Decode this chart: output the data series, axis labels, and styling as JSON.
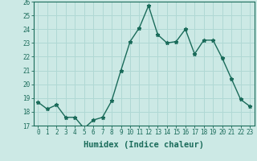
{
  "x": [
    0,
    1,
    2,
    3,
    4,
    5,
    6,
    7,
    8,
    9,
    10,
    11,
    12,
    13,
    14,
    15,
    16,
    17,
    18,
    19,
    20,
    21,
    22,
    23
  ],
  "y": [
    18.7,
    18.2,
    18.5,
    17.6,
    17.6,
    16.8,
    17.4,
    17.6,
    18.8,
    21.0,
    23.1,
    24.1,
    25.7,
    23.6,
    23.0,
    23.1,
    24.0,
    22.2,
    23.2,
    23.2,
    21.9,
    20.4,
    18.9,
    18.4
  ],
  "line_color": "#1a6b5a",
  "marker": "*",
  "marker_size": 3.5,
  "bg_color": "#cce9e5",
  "grid_color": "#b0d8d4",
  "xlabel": "Humidex (Indice chaleur)",
  "ylim": [
    17,
    26
  ],
  "xlim": [
    -0.5,
    23.5
  ],
  "yticks": [
    17,
    18,
    19,
    20,
    21,
    22,
    23,
    24,
    25,
    26
  ],
  "xticks": [
    0,
    1,
    2,
    3,
    4,
    5,
    6,
    7,
    8,
    9,
    10,
    11,
    12,
    13,
    14,
    15,
    16,
    17,
    18,
    19,
    20,
    21,
    22,
    23
  ],
  "tick_color": "#1a6b5a",
  "tick_fontsize": 5.5,
  "xlabel_fontsize": 7.5,
  "line_width": 1.0
}
